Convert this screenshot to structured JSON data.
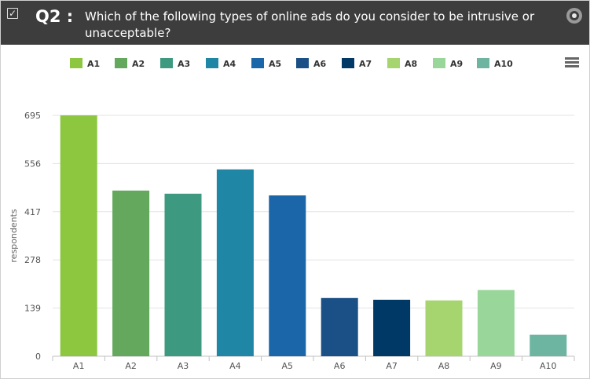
{
  "question": {
    "label": "Q2 :",
    "title": "Which of the following types of online ads do you consider to be intrusive or unacceptable?"
  },
  "icons": {
    "checkbox": "checkbox-checked-icon",
    "target": "target-icon",
    "menu": "hamburger-menu-icon"
  },
  "chart_data": {
    "type": "bar",
    "categories": [
      "A1",
      "A2",
      "A3",
      "A4",
      "A5",
      "A6",
      "A7",
      "A8",
      "A9",
      "A10"
    ],
    "values": [
      695,
      478,
      469,
      539,
      464,
      168,
      163,
      161,
      191,
      62
    ],
    "colors": [
      "#8dc63f",
      "#64a85d",
      "#3d9a80",
      "#1f87a5",
      "#1a66a8",
      "#1a5085",
      "#003866",
      "#a6d46e",
      "#99d69a",
      "#6db5a0"
    ],
    "title": "",
    "xlabel": "",
    "ylabel": "respondents",
    "yticks": [
      0,
      139,
      278,
      417,
      556,
      695
    ],
    "ylim": [
      0,
      695
    ],
    "grid": true,
    "legend_position": "top"
  }
}
